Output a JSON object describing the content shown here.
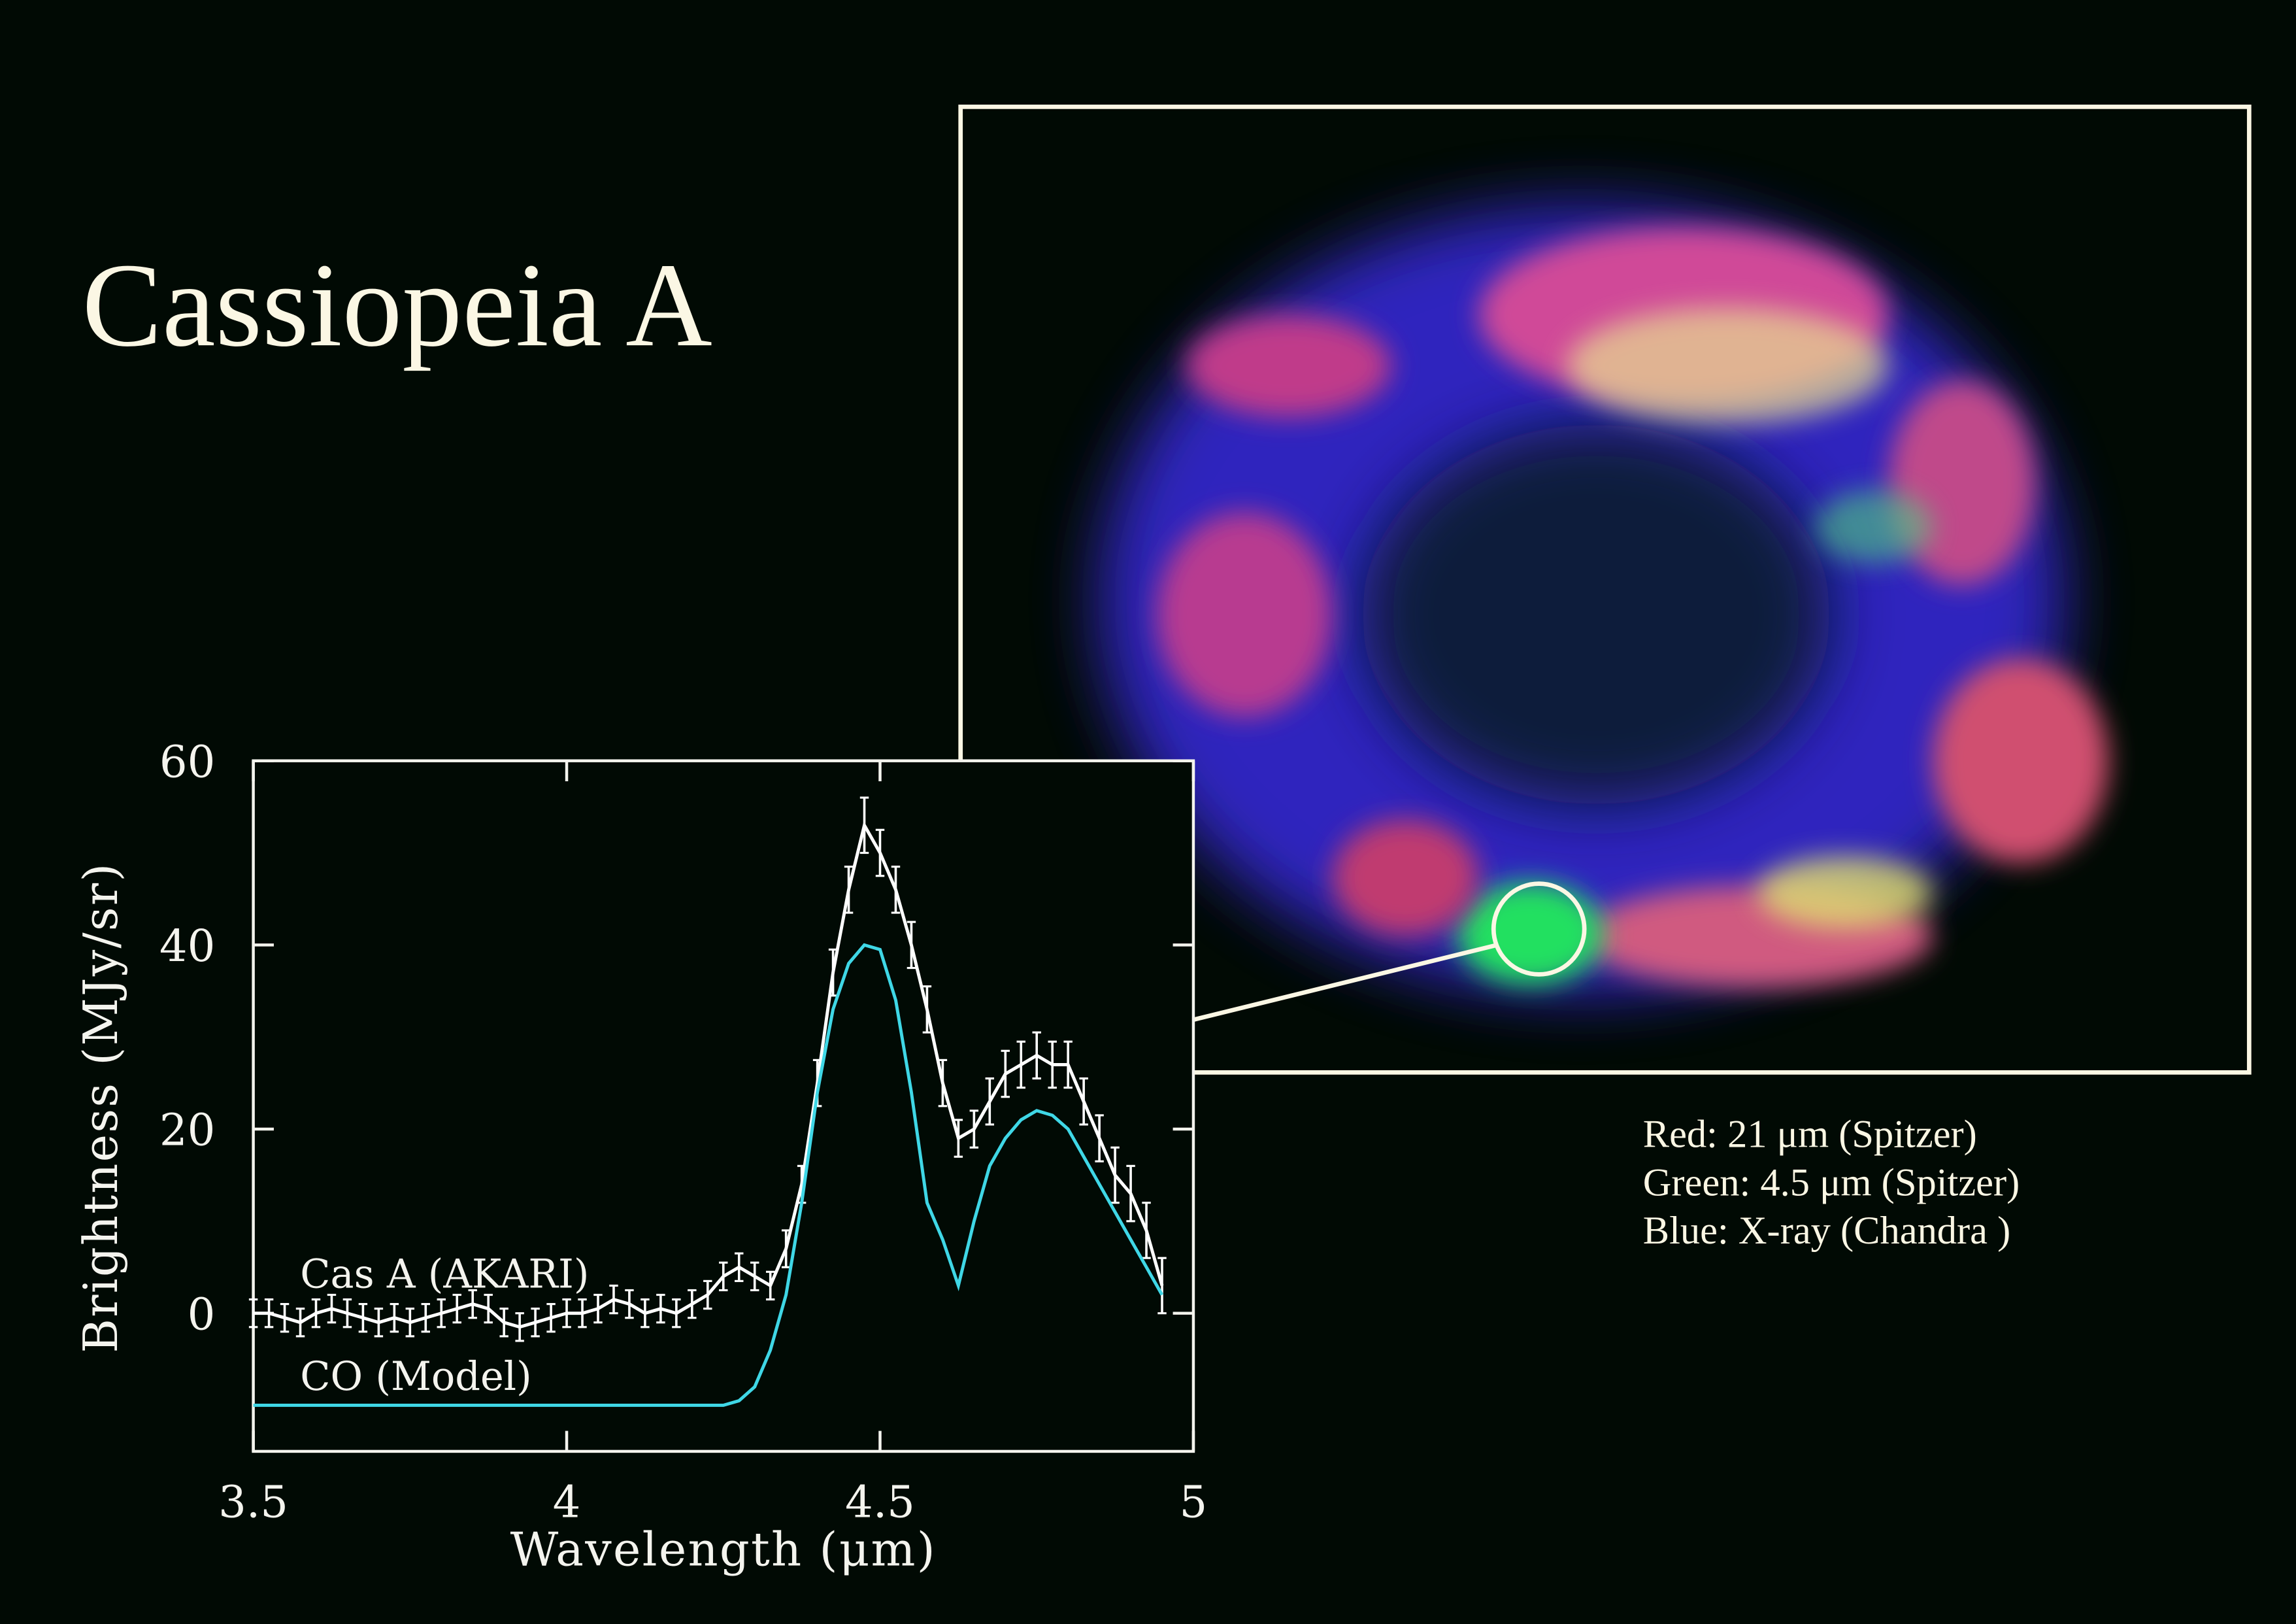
{
  "chart_data": {
    "type": "line",
    "title": "Cassiopeia A",
    "caption": [
      "Red: 21 μm (Spitzer)",
      "Green: 4.5 μm (Spitzer)",
      "Blue: X-ray (Chandra )"
    ],
    "x_label": "Wavelength (μm)",
    "y_label": "Brightness (MJy/sr)",
    "xlim": [
      3.5,
      5
    ],
    "ylim": [
      -15,
      60
    ],
    "xticks": [
      3.5,
      4,
      4.5,
      5
    ],
    "yticks": [
      0,
      20,
      40,
      60
    ],
    "x": [
      3.5,
      3.525,
      3.55,
      3.575,
      3.6,
      3.625,
      3.65,
      3.675,
      3.7,
      3.725,
      3.75,
      3.775,
      3.8,
      3.825,
      3.85,
      3.875,
      3.9,
      3.925,
      3.95,
      3.975,
      4.0,
      4.025,
      4.05,
      4.075,
      4.1,
      4.125,
      4.15,
      4.175,
      4.2,
      4.225,
      4.25,
      4.275,
      4.3,
      4.325,
      4.35,
      4.375,
      4.4,
      4.425,
      4.45,
      4.475,
      4.5,
      4.525,
      4.55,
      4.575,
      4.6,
      4.625,
      4.65,
      4.675,
      4.7,
      4.725,
      4.75,
      4.775,
      4.8,
      4.825,
      4.85,
      4.875,
      4.9,
      4.925,
      4.95
    ],
    "series": [
      {
        "name": "Cas A (AKARI)",
        "color": "#ffffff",
        "values": [
          0,
          0,
          -0.5,
          -1,
          0,
          0.5,
          0,
          -0.5,
          -1,
          -0.5,
          -1,
          -0.5,
          0,
          0.5,
          1,
          0.5,
          -1,
          -1.5,
          -1,
          -0.5,
          0,
          0,
          0.5,
          1.5,
          1,
          0,
          0.5,
          0,
          1,
          2,
          4,
          5,
          4,
          3,
          7,
          14,
          25,
          37,
          46,
          53,
          50,
          46,
          40,
          33,
          25,
          19,
          20,
          23,
          26,
          27,
          28,
          27,
          27,
          23,
          19,
          15,
          13,
          9,
          3
        ],
        "errors": [
          1.5,
          1.5,
          1.5,
          1.5,
          1.5,
          1.5,
          1.5,
          1.5,
          1.5,
          1.5,
          1.5,
          1.5,
          1.5,
          1.5,
          1.5,
          1.5,
          1.5,
          1.5,
          1.5,
          1.5,
          1.5,
          1.5,
          1.5,
          1.5,
          1.5,
          1.5,
          1.5,
          1.5,
          1.5,
          1.5,
          1.5,
          1.5,
          1.5,
          1.5,
          2,
          2,
          2.5,
          2.5,
          2.5,
          3,
          2.5,
          2.5,
          2.5,
          2.5,
          2.5,
          2,
          2,
          2.5,
          2.5,
          2.5,
          2.5,
          2.5,
          2.5,
          2.5,
          2.5,
          3,
          3,
          3,
          3
        ]
      },
      {
        "name": "CO (Model)",
        "color": "#3fd7e6",
        "values": [
          -10,
          -10,
          -10,
          -10,
          -10,
          -10,
          -10,
          -10,
          -10,
          -10,
          -10,
          -10,
          -10,
          -10,
          -10,
          -10,
          -10,
          -10,
          -10,
          -10,
          -10,
          -10,
          -10,
          -10,
          -10,
          -10,
          -10,
          -10,
          -10,
          -10,
          -10,
          -9.5,
          -8,
          -4,
          2,
          12,
          24,
          33,
          38,
          40,
          39.5,
          34,
          24,
          12,
          8,
          3,
          10,
          16,
          19,
          21,
          22,
          21.5,
          20,
          17,
          14,
          11,
          8,
          5,
          2
        ]
      }
    ]
  }
}
